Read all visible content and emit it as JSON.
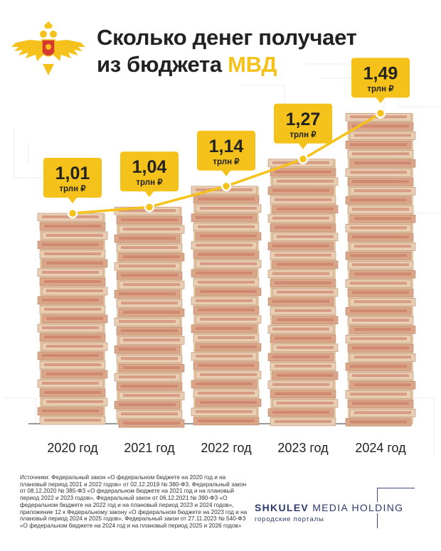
{
  "title": {
    "line1": "Сколько денег получает",
    "line2_prefix": "из бюджета",
    "line2_highlight": "МВД"
  },
  "colors": {
    "accent": "#f4c21a",
    "text": "#222222",
    "brand": "#2b3a6b",
    "money_red": "#c8705a",
    "money_beige": "#e6c9a8"
  },
  "icons": {
    "emblem": "mvd-double-headed-eagle-emblem",
    "stacks": "banknote-stack"
  },
  "chart_data": {
    "type": "line",
    "categories": [
      "2020 год",
      "2021 год",
      "2022 год",
      "2023 год",
      "2024 год"
    ],
    "values": [
      1.01,
      1.04,
      1.14,
      1.27,
      1.49
    ],
    "value_labels": [
      "1,01",
      "1,04",
      "1,14",
      "1,27",
      "1,49"
    ],
    "unit": "трлн ₽",
    "title": "Сколько денег получает из бюджета МВД",
    "xlabel": "",
    "ylabel": "",
    "ylim": [
      0,
      1.5
    ],
    "grid": false,
    "legend": "none"
  },
  "sources": "Источники: Федеральный закон «О федеральном бюджете на 2020 год и на плановый период 2021 и 2022 годов» от 02.12.2019 № 380-ФЗ, Федеральный закон от 08.12.2020 № 385-ФЗ «О федеральном бюджете на 2021 год и на плановый период 2022 и 2023 годов», Федеральный закон от 06.12.2021 № 390-ФЗ «О федеральном бюджете на 2022 год и на плановый период 2023 и 2024 годов», приложение 12 к Федеральному закону «О федеральном бюджете на 2023 год и на плановый период 2024 и 2025 годов», Федеральный закон от 27.11.2023 № 540-ФЗ «О федеральном бюджете на 2024 год и на плановый период 2025 и 2026 годов»",
  "brand": {
    "name_bold": "SHKULEV",
    "name_rest": "MEDIA HOLDING",
    "tagline": "городские порталы"
  }
}
